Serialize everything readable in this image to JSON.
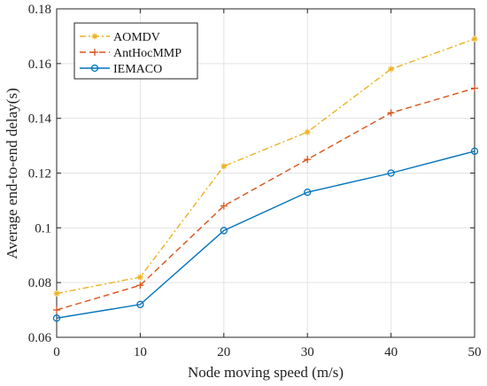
{
  "chart_data": {
    "type": "line",
    "title": "",
    "xlabel": "Node moving speed (m/s)",
    "ylabel": "Average end-to-end delay(s)",
    "xlim": [
      0,
      50
    ],
    "ylim": [
      0.06,
      0.18
    ],
    "x_ticks": [
      0,
      10,
      20,
      30,
      40,
      50
    ],
    "x_tick_labels": [
      "0",
      "10",
      "20",
      "30",
      "40",
      "50"
    ],
    "y_ticks": [
      0.06,
      0.08,
      0.1,
      0.12,
      0.14,
      0.16,
      0.18
    ],
    "y_tick_labels": [
      "0.06",
      "0.08",
      "0.1",
      "0.12",
      "0.14",
      "0.16",
      "0.18"
    ],
    "grid": true,
    "legend_position": "top-left",
    "x": [
      0,
      10,
      20,
      30,
      40,
      50
    ],
    "series": [
      {
        "name": "AOMDV",
        "values": [
          0.076,
          0.082,
          0.1225,
          0.135,
          0.158,
          0.169
        ],
        "color": "#EDB120",
        "line_style": "dash-dot",
        "marker": "asterisk"
      },
      {
        "name": "AntHocMMP",
        "values": [
          0.07,
          0.079,
          0.108,
          0.125,
          0.142,
          0.151
        ],
        "color": "#D95319",
        "line_style": "dashed",
        "marker": "plus"
      },
      {
        "name": "IEMACO",
        "values": [
          0.067,
          0.072,
          0.099,
          0.113,
          0.12,
          0.128
        ],
        "color": "#0072BD",
        "line_style": "solid",
        "marker": "circle"
      }
    ]
  }
}
